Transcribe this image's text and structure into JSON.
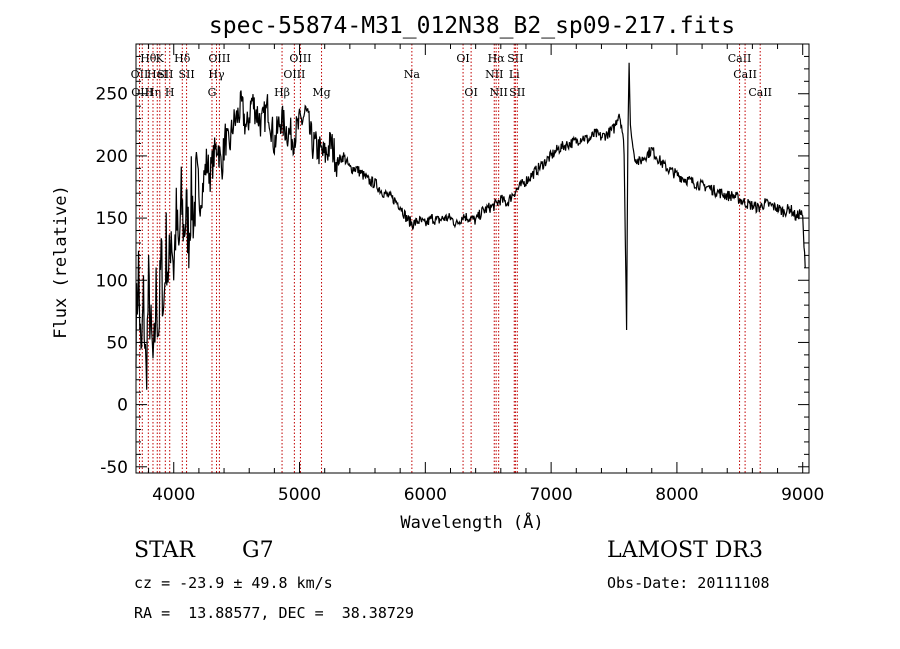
{
  "chart_data": {
    "type": "line",
    "title": "spec-55874-M31_012N38_B2_sp09-217.fits",
    "xlabel": "Wavelength (Å)",
    "ylabel": "Flux (relative)",
    "xlim": [
      3700,
      9050
    ],
    "ylim": [
      -55,
      290
    ],
    "xticks": [
      4000,
      5000,
      6000,
      7000,
      8000,
      9000
    ],
    "yticks": [
      -50,
      0,
      50,
      100,
      150,
      200,
      250
    ],
    "grid": false,
    "series": [
      {
        "x": [
          3700,
          3720,
          3740,
          3760,
          3780,
          3800,
          3820,
          3840,
          3860,
          3880,
          3900,
          3920,
          3940,
          3960,
          3980,
          4000,
          4020,
          4040,
          4060,
          4080,
          4100,
          4120,
          4140,
          4160,
          4180,
          4200,
          4230,
          4260,
          4290,
          4320,
          4350,
          4380,
          4410,
          4440,
          4470,
          4500,
          4540,
          4580,
          4620,
          4660,
          4700,
          4750,
          4800,
          4850,
          4900,
          4950,
          5000,
          5050,
          5100,
          5150,
          5200,
          5250,
          5300,
          5350,
          5400,
          5450,
          5500,
          5550,
          5600,
          5650,
          5700,
          5750,
          5800,
          5850,
          5900,
          5950,
          6000,
          6050,
          6100,
          6150,
          6200,
          6250,
          6300,
          6350,
          6400,
          6450,
          6500,
          6550,
          6600,
          6650,
          6700,
          6750,
          6800,
          6850,
          6900,
          6950,
          7000,
          7050,
          7100,
          7150,
          7200,
          7250,
          7300,
          7350,
          7400,
          7450,
          7500,
          7540,
          7560,
          7580,
          7600,
          7610,
          7620,
          7630,
          7640,
          7660,
          7700,
          7750,
          7800,
          7850,
          7900,
          7950,
          8000,
          8050,
          8100,
          8150,
          8200,
          8250,
          8300,
          8350,
          8400,
          8450,
          8500,
          8550,
          8600,
          8650,
          8700,
          8750,
          8800,
          8850,
          8900,
          8950,
          8980,
          9000,
          9010,
          9020
        ],
        "y": [
          60,
          110,
          30,
          85,
          20,
          95,
          55,
          25,
          90,
          60,
          120,
          75,
          130,
          100,
          145,
          110,
          150,
          120,
          165,
          140,
          155,
          135,
          170,
          150,
          180,
          160,
          175,
          195,
          185,
          200,
          210,
          190,
          215,
          205,
          225,
          230,
          240,
          220,
          245,
          235,
          225,
          240,
          210,
          230,
          220,
          215,
          225,
          235,
          210,
          205,
          200,
          210,
          195,
          200,
          190,
          190,
          185,
          180,
          178,
          172,
          168,
          165,
          160,
          150,
          145,
          148,
          145,
          150,
          148,
          150,
          150,
          145,
          152,
          150,
          148,
          155,
          158,
          160,
          165,
          162,
          170,
          175,
          180,
          185,
          190,
          195,
          200,
          205,
          208,
          210,
          212,
          215,
          213,
          218,
          215,
          218,
          222,
          235,
          225,
          205,
          60,
          215,
          275,
          225,
          215,
          200,
          195,
          200,
          205,
          198,
          192,
          188,
          185,
          182,
          180,
          178,
          176,
          175,
          172,
          170,
          168,
          168,
          165,
          162,
          160,
          158,
          162,
          160,
          158,
          155,
          158,
          150,
          155,
          150,
          128,
          110
        ]
      }
    ],
    "lines": [
      {
        "x": 3728,
        "label": "OII",
        "row": 2
      },
      {
        "x": 3750,
        "label": "OIII",
        "row": 3
      },
      {
        "x": 3798,
        "label": "Hθ",
        "row": 1
      },
      {
        "x": 3835,
        "label": "Hη",
        "row": 3
      },
      {
        "x": 3869,
        "label": "HeI",
        "row": 2
      },
      {
        "x": 3889,
        "label": "K",
        "row": 1
      },
      {
        "x": 3933,
        "label": "SII",
        "row": 2
      },
      {
        "x": 3968,
        "label": "H",
        "row": 3
      },
      {
        "x": 4068,
        "label": "Hδ",
        "row": 1
      },
      {
        "x": 4102,
        "label": "SII",
        "row": 2
      },
      {
        "x": 4304,
        "label": "G",
        "row": 3
      },
      {
        "x": 4340,
        "label": "Hγ",
        "row": 2
      },
      {
        "x": 4363,
        "label": "OIII",
        "row": 1
      },
      {
        "x": 4861,
        "label": "Hβ",
        "row": 3
      },
      {
        "x": 4959,
        "label": "OIII",
        "row": 2
      },
      {
        "x": 5007,
        "label": "OIII",
        "row": 1
      },
      {
        "x": 5175,
        "label": "Mg",
        "row": 3
      },
      {
        "x": 5893,
        "label": "Na",
        "row": 2
      },
      {
        "x": 6300,
        "label": "OI",
        "row": 1
      },
      {
        "x": 6364,
        "label": "OI",
        "row": 3
      },
      {
        "x": 6548,
        "label": "NII",
        "row": 2
      },
      {
        "x": 6563,
        "label": "Hα",
        "row": 1
      },
      {
        "x": 6583,
        "label": "NII",
        "row": 3
      },
      {
        "x": 6707,
        "label": "Li",
        "row": 2
      },
      {
        "x": 6716,
        "label": "SII",
        "row": 1
      },
      {
        "x": 6731,
        "label": "SII",
        "row": 3
      },
      {
        "x": 8498,
        "label": "CaII",
        "row": 1
      },
      {
        "x": 8542,
        "label": "CaII",
        "row": 2
      },
      {
        "x": 8662,
        "label": "CaII",
        "row": 3
      }
    ]
  },
  "info": {
    "class": "STAR",
    "subclass": "G7",
    "survey": "LAMOST DR3",
    "cz": "cz = -23.9 ± 49.8 km/s",
    "obsdate": "Obs-Date: 20111108",
    "radec": "RA =  13.88577, DEC =  38.38729"
  }
}
